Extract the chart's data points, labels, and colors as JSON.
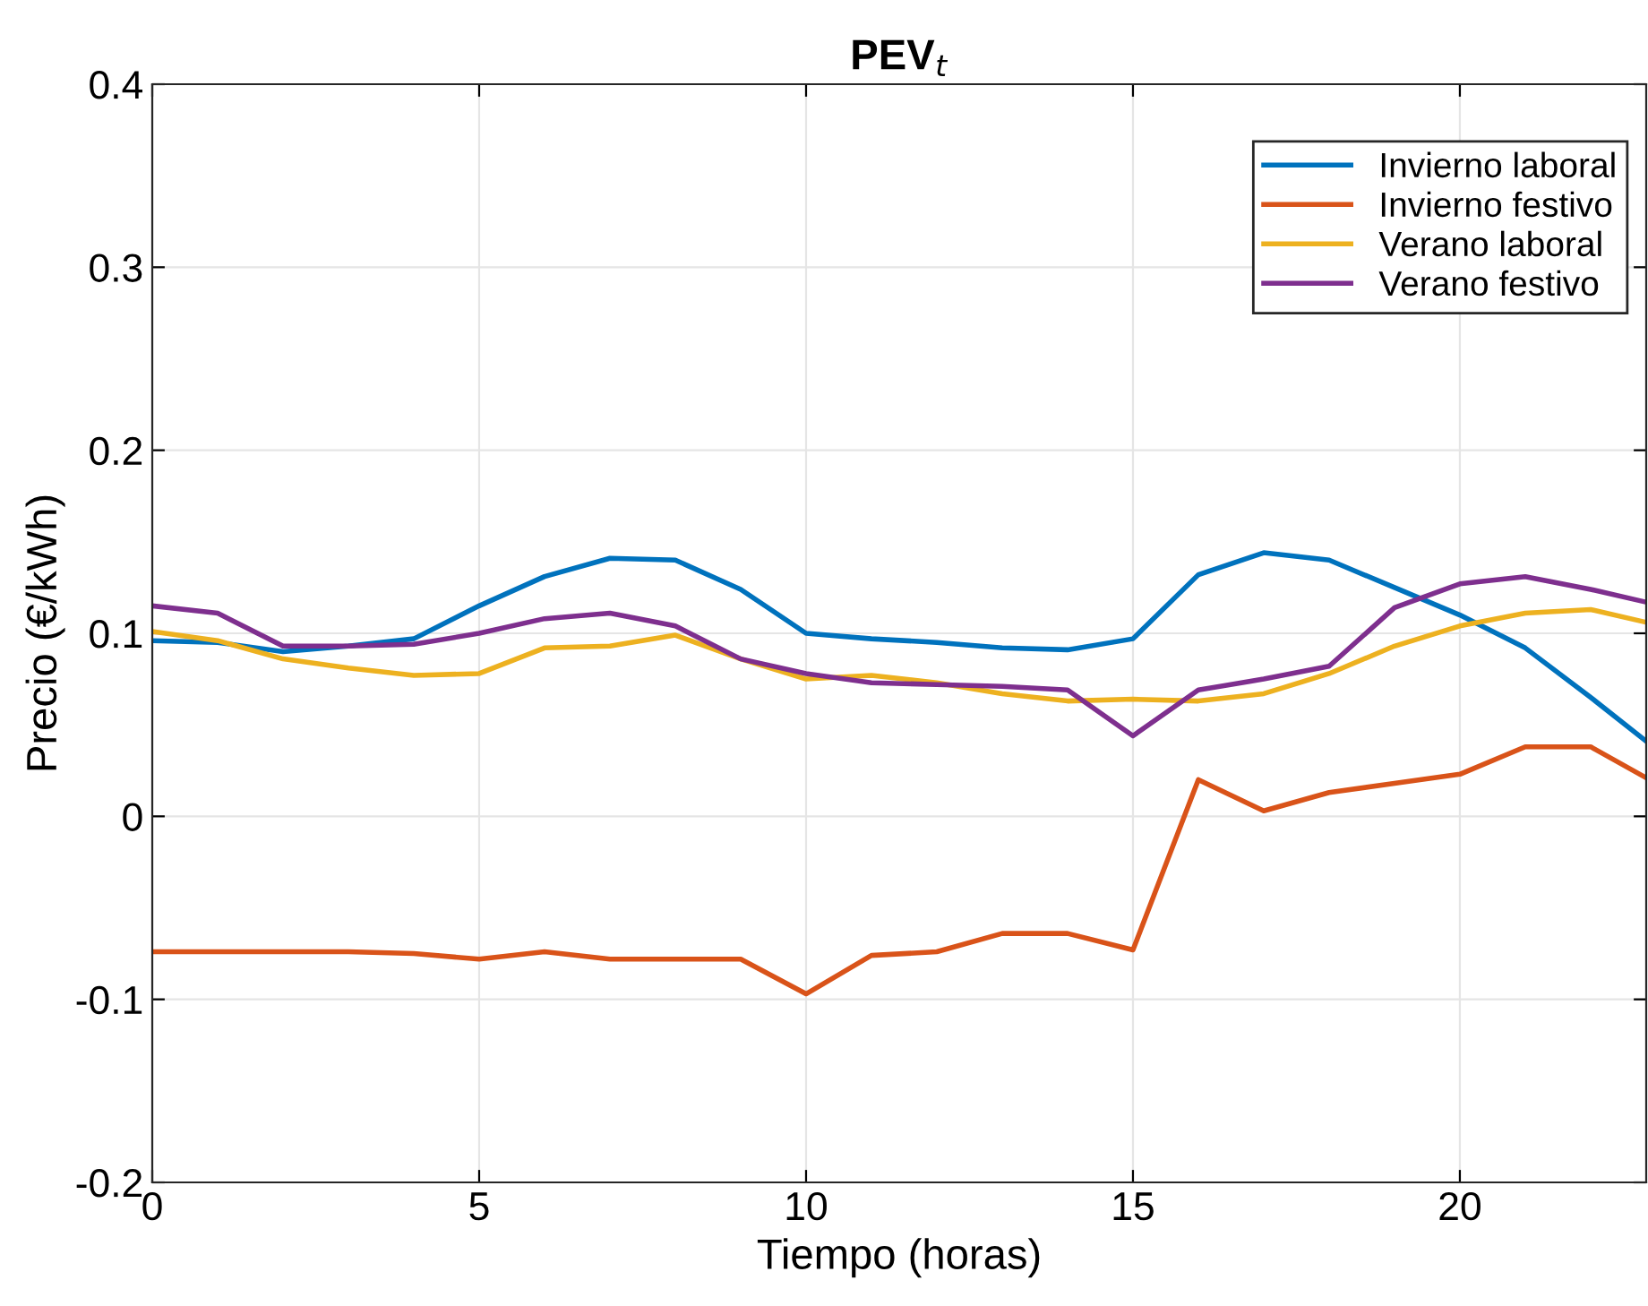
{
  "chart_data": {
    "type": "line",
    "title": "PEV$_{t}$",
    "xlabel": "Tiempo (horas)",
    "ylabel": "Precio (€/kWh)",
    "x": [
      0,
      1,
      2,
      3,
      4,
      5,
      6,
      7,
      8,
      9,
      10,
      11,
      12,
      13,
      14,
      15,
      16,
      17,
      18,
      19,
      20,
      21,
      22,
      22.85
    ],
    "series": [
      {
        "name": "Invierno laboral",
        "color": "#0072bd",
        "values": [
          0.096,
          0.095,
          0.09,
          0.093,
          0.097,
          0.115,
          0.131,
          0.141,
          0.14,
          0.124,
          0.1,
          0.097,
          0.095,
          0.092,
          0.091,
          0.097,
          0.132,
          0.144,
          0.14,
          0.125,
          0.11,
          0.092,
          0.065,
          0.041
        ]
      },
      {
        "name": "Invierno festivo",
        "color": "#d95319",
        "values": [
          -0.074,
          -0.074,
          -0.074,
          -0.074,
          -0.075,
          -0.078,
          -0.074,
          -0.078,
          -0.078,
          -0.078,
          -0.097,
          -0.076,
          -0.074,
          -0.064,
          -0.064,
          -0.073,
          0.02,
          0.003,
          0.013,
          0.018,
          0.023,
          0.038,
          0.038,
          0.021
        ]
      },
      {
        "name": "Verano laboral",
        "color": "#edb120",
        "values": [
          0.101,
          0.096,
          0.086,
          0.081,
          0.077,
          0.078,
          0.092,
          0.093,
          0.099,
          0.086,
          0.075,
          0.077,
          0.073,
          0.067,
          0.063,
          0.064,
          0.063,
          0.067,
          0.078,
          0.093,
          0.104,
          0.111,
          0.113,
          0.106
        ]
      },
      {
        "name": "Verano festivo",
        "color": "#7e2f8e",
        "values": [
          0.115,
          0.111,
          0.093,
          0.093,
          0.094,
          0.1,
          0.108,
          0.111,
          0.104,
          0.086,
          0.078,
          0.073,
          0.072,
          0.071,
          0.069,
          0.044,
          0.069,
          0.075,
          0.082,
          0.114,
          0.127,
          0.131,
          0.124,
          0.117
        ]
      }
    ],
    "xlim": [
      0,
      22.85
    ],
    "xticks": [
      0,
      5,
      10,
      15,
      20
    ],
    "ylim": [
      -0.2,
      0.4
    ],
    "yticks": [
      {
        "value": -0.2,
        "label": "-0.2"
      },
      {
        "value": -0.1,
        "label": "-0.1"
      },
      0,
      0.1,
      0.2,
      0.3,
      0.4
    ],
    "grid": true,
    "legend": "top right",
    "marker": "none",
    "line_style": "solid"
  }
}
